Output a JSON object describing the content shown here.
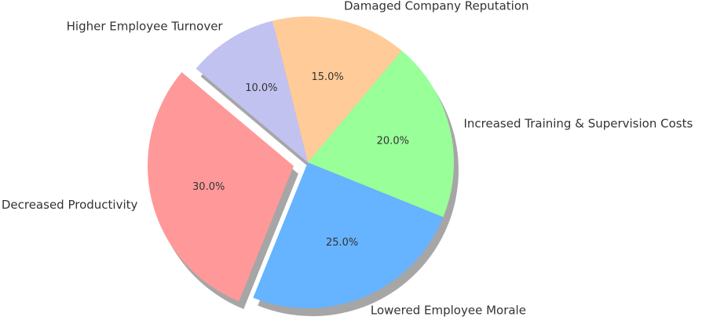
{
  "chart_data": {
    "type": "pie",
    "categories": [
      "Decreased Productivity",
      "Lowered Employee Morale",
      "Increased Training & Supervision Costs",
      "Damaged Company Reputation",
      "Higher Employee Turnover"
    ],
    "values": [
      30,
      25,
      20,
      15,
      10
    ],
    "value_labels": [
      "30.0%",
      "25.0%",
      "20.0%",
      "15.0%",
      "10.0%"
    ],
    "colors": [
      "#ff9999",
      "#66b3ff",
      "#99ff99",
      "#ffcc99",
      "#c2c2f0"
    ],
    "explode": [
      0.1,
      0,
      0,
      0,
      0
    ],
    "start_angle_deg": 140,
    "direction": "counterclockwise",
    "shadow": true
  }
}
